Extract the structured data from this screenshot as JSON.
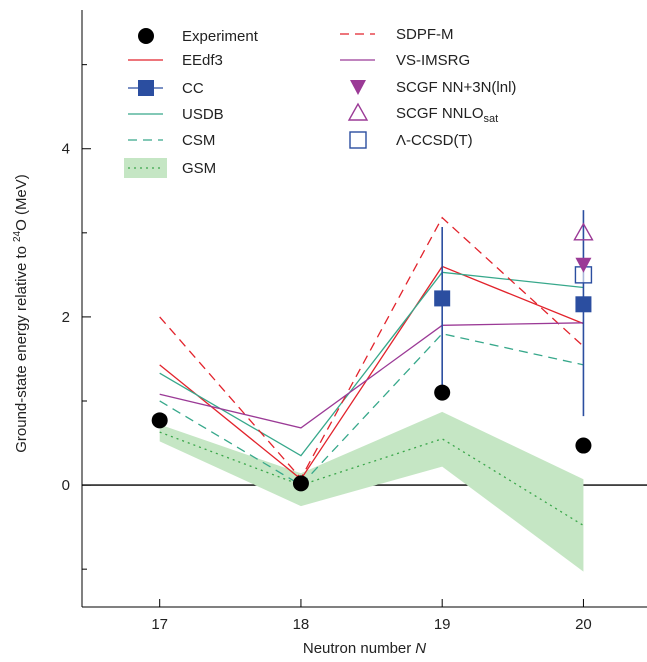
{
  "chart_data": {
    "type": "line",
    "xlabel": "Neutron number",
    "xlabel_var": "N",
    "ylabel": "Ground-state energy relative to",
    "ylabel_sup": "24",
    "ylabel_tail": "O (MeV)",
    "xlim": [
      16.45,
      20.45
    ],
    "ylim": [
      -1.45,
      5.65
    ],
    "x_ticks": [
      17,
      18,
      19,
      20
    ],
    "y_major_ticks": [
      0,
      2,
      4
    ],
    "y_minor_ticks": [
      -1,
      1,
      3,
      5
    ],
    "zero_line": true,
    "colors": {
      "experiment": "#000000",
      "eedf3": "#e2232c",
      "cc": "#2b4ea0",
      "usdb": "#37a88b",
      "csm": "#37a88b",
      "gsm": "#3aa64a",
      "gsm_band": "#c5e6c4",
      "sdpfm": "#e2232c",
      "vsimsrg": "#9b3a96",
      "scgf_nn3n": "#9b3a96",
      "scgf_nnlo": "#9b3a96",
      "lambda_ccsd": "#2b4ea0"
    },
    "series": [
      {
        "key": "eedf3",
        "name": "EEdf3",
        "x": [
          17,
          18,
          19,
          20
        ],
        "y": [
          1.43,
          0.07,
          2.6,
          1.92
        ],
        "style": "solid"
      },
      {
        "key": "usdb",
        "name": "USDB",
        "x": [
          17,
          18,
          19,
          20
        ],
        "y": [
          1.33,
          0.35,
          2.53,
          2.35
        ],
        "style": "solid"
      },
      {
        "key": "csm",
        "name": "CSM",
        "x": [
          17,
          18,
          19,
          20
        ],
        "y": [
          1.0,
          0.0,
          1.8,
          1.43
        ],
        "style": "dashed"
      },
      {
        "key": "sdpfm",
        "name": "SDPF-M",
        "x": [
          17,
          18,
          19,
          20
        ],
        "y": [
          2.0,
          0.08,
          3.18,
          1.65
        ],
        "style": "dashed"
      },
      {
        "key": "vsimsrg",
        "name": "VS-IMSRG",
        "x": [
          17,
          18,
          19,
          20
        ],
        "y": [
          1.08,
          0.68,
          1.9,
          1.93
        ],
        "style": "solid"
      },
      {
        "key": "gsm",
        "name": "GSM",
        "x": [
          17,
          18,
          19,
          20
        ],
        "y": [
          0.63,
          0.0,
          0.55,
          -0.48
        ],
        "style": "dotted",
        "band_upper": [
          0.72,
          0.14,
          0.87,
          0.07
        ],
        "band_lower": [
          0.52,
          -0.25,
          0.22,
          -1.03
        ]
      }
    ],
    "experiment": {
      "name": "Experiment",
      "x": [
        17,
        18,
        19,
        20
      ],
      "y": [
        0.77,
        0.02,
        1.1,
        0.47
      ]
    },
    "cc": {
      "name": "CC",
      "x": [
        19,
        20
      ],
      "y": [
        2.22,
        2.15
      ],
      "err_low": [
        1.07,
        0.82
      ],
      "err_high": [
        3.07,
        3.27
      ]
    },
    "scgf_nn3n": {
      "name": "SCGF NN+3N(lnl)",
      "x": [
        20
      ],
      "y": [
        2.62
      ]
    },
    "scgf_nnlo": {
      "name": "SCGF NNLO",
      "name_sub": "sat",
      "x": [
        20
      ],
      "y": [
        3.0
      ]
    },
    "lambda_ccsd": {
      "name": "Λ-CCSD(T)",
      "x": [
        20
      ],
      "y": [
        2.5
      ]
    },
    "legend_placement": "top"
  }
}
